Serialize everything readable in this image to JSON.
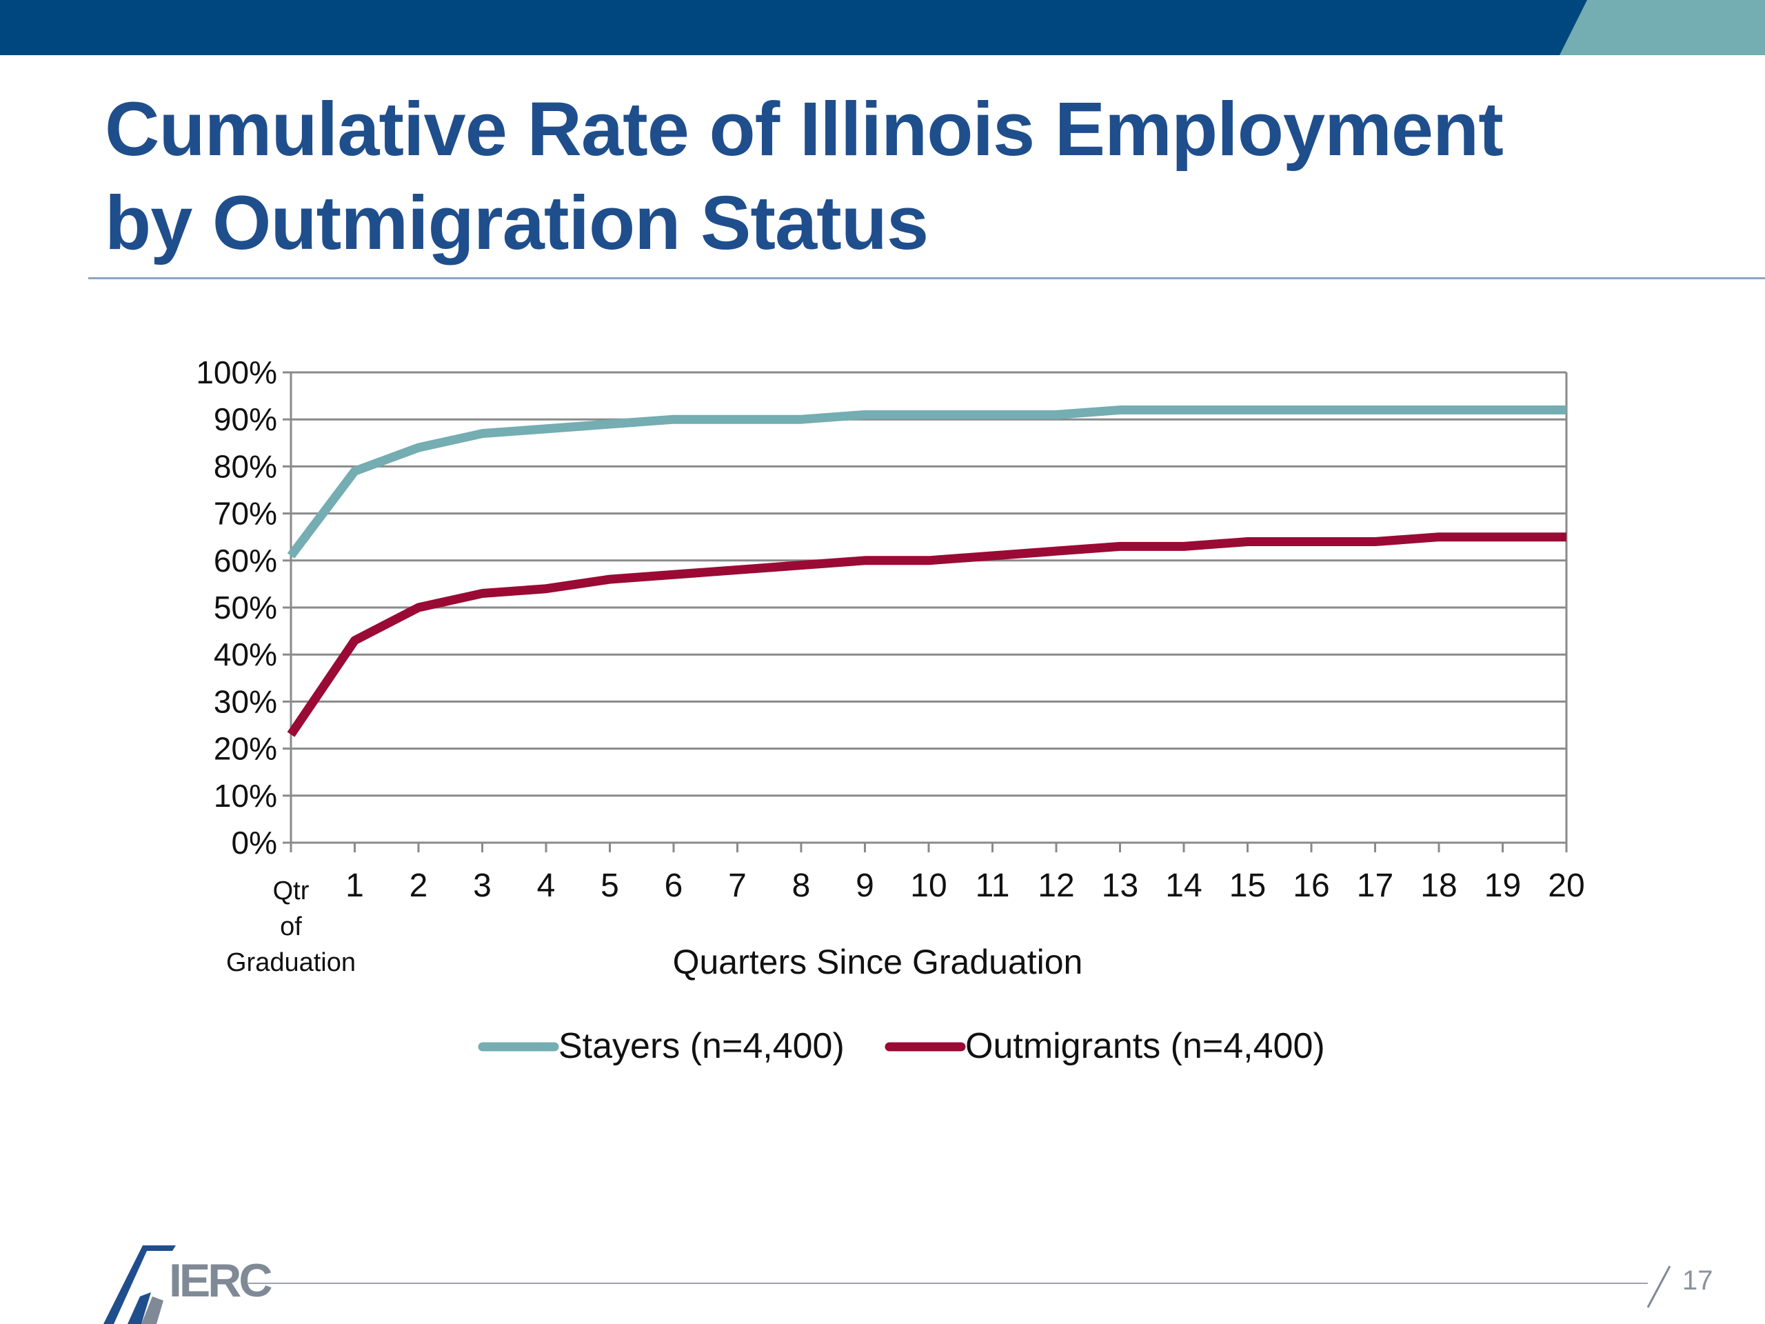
{
  "slide": {
    "title_line1": "Cumulative Rate of Illinois Employment",
    "title_line2": "by Outmigration Status",
    "page_number": "17"
  },
  "logo": {
    "text": "IERC"
  },
  "colors": {
    "header_bar": "#00477f",
    "header_accent": "#74adb2",
    "title": "#1f4e8c",
    "stayers": "#74adb2",
    "outmigrants": "#9a0a35",
    "grid": "#8a8a8a"
  },
  "chart_data": {
    "type": "line",
    "xlabel": "Quarters Since Graduation",
    "ylabel": "",
    "x": [
      "Qtr of Graduation",
      "1",
      "2",
      "3",
      "4",
      "5",
      "6",
      "7",
      "8",
      "9",
      "10",
      "11",
      "12",
      "13",
      "14",
      "15",
      "16",
      "17",
      "18",
      "19",
      "20"
    ],
    "x_tick_labels": [
      [
        "Qtr",
        "of",
        "Graduation"
      ],
      [
        "1"
      ],
      [
        "2"
      ],
      [
        "3"
      ],
      [
        "4"
      ],
      [
        "5"
      ],
      [
        "6"
      ],
      [
        "7"
      ],
      [
        "8"
      ],
      [
        "9"
      ],
      [
        "10"
      ],
      [
        "11"
      ],
      [
        "12"
      ],
      [
        "13"
      ],
      [
        "14"
      ],
      [
        "15"
      ],
      [
        "16"
      ],
      [
        "17"
      ],
      [
        "18"
      ],
      [
        "19"
      ],
      [
        "20"
      ]
    ],
    "y_tick_labels": [
      "0%",
      "10%",
      "20%",
      "30%",
      "40%",
      "50%",
      "60%",
      "70%",
      "80%",
      "90%",
      "100%"
    ],
    "ylim": [
      0,
      100
    ],
    "grid": true,
    "legend_position": "bottom",
    "series": [
      {
        "name": "Stayers (n=4,400)",
        "color": "#74adb2",
        "values": [
          61,
          79,
          84,
          87,
          88,
          89,
          90,
          90,
          90,
          91,
          91,
          91,
          91,
          92,
          92,
          92,
          92,
          92,
          92,
          92,
          92
        ]
      },
      {
        "name": "Outmigrants (n=4,400)",
        "color": "#9a0a35",
        "values": [
          23,
          43,
          50,
          53,
          54,
          56,
          57,
          58,
          59,
          60,
          60,
          61,
          62,
          63,
          63,
          64,
          64,
          64,
          65,
          65,
          65
        ]
      }
    ]
  }
}
